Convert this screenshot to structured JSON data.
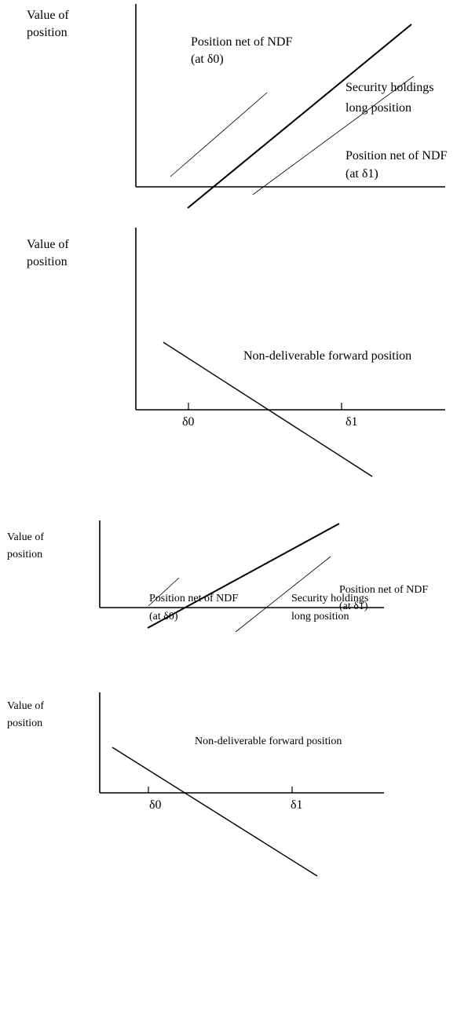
{
  "panels": [
    {
      "y_axis_label": [
        "Value of",
        "position"
      ],
      "lines": [
        {
          "label": [
            "Position net of NDF",
            "(at δ0)"
          ]
        },
        {
          "label": [
            "Security holdings",
            "long position"
          ]
        },
        {
          "label": [
            "Position net of NDF",
            "(at δ1)"
          ]
        }
      ]
    },
    {
      "y_axis_label": [
        "Value of",
        "position"
      ],
      "line_label": "Non-deliverable forward position",
      "ticks": [
        "δ0",
        "δ1"
      ]
    },
    {
      "y_axis_label": [
        "Value of",
        "position"
      ],
      "lines": [
        {
          "label": [
            "Position net of NDF",
            "(at δ0)"
          ]
        },
        {
          "label": [
            "Security holdings",
            "long position"
          ]
        },
        {
          "label": [
            "Position net of NDF",
            "(at δ1)"
          ]
        }
      ]
    },
    {
      "y_axis_label": [
        "Value of",
        "position"
      ],
      "line_label": "Non-deliverable forward position",
      "ticks": [
        "δ0",
        "δ1"
      ]
    }
  ]
}
